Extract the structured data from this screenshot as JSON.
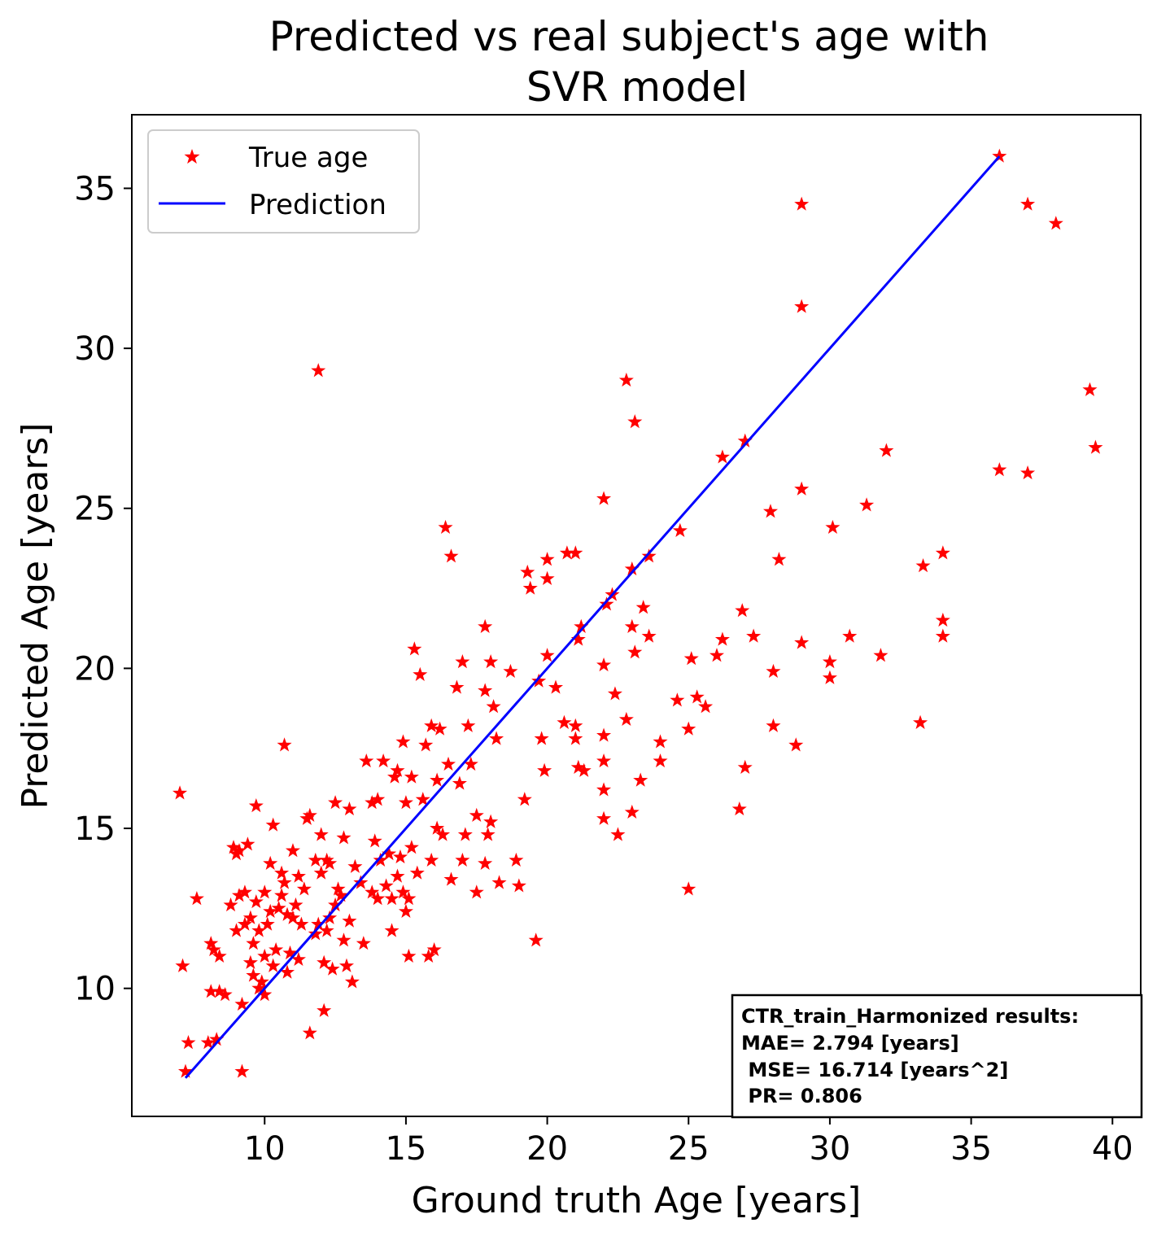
{
  "chart_data": {
    "type": "scatter",
    "title": [
      "Predicted vs real subject's age with",
      "SVR model"
    ],
    "xlabel": "Ground truth Age [years]",
    "ylabel": "Predicted Age [years]",
    "xlim": [
      5.3,
      41.0
    ],
    "ylim": [
      6.0,
      37.3
    ],
    "xticks": [
      10,
      15,
      20,
      25,
      30,
      35,
      40
    ],
    "yticks": [
      10,
      15,
      20,
      25,
      30,
      35
    ],
    "grid": false,
    "legend_position": "top-left",
    "series": [
      {
        "name": "True age",
        "kind": "scatter",
        "marker": "star",
        "color": "#ff0000",
        "points": [
          [
            7.0,
            16.1
          ],
          [
            7.1,
            10.7
          ],
          [
            7.2,
            7.4
          ],
          [
            7.3,
            8.3
          ],
          [
            7.6,
            12.8
          ],
          [
            8.0,
            8.3
          ],
          [
            8.1,
            9.9
          ],
          [
            8.1,
            11.4
          ],
          [
            8.2,
            11.2
          ],
          [
            8.3,
            8.4
          ],
          [
            8.4,
            11.0
          ],
          [
            8.4,
            9.9
          ],
          [
            8.6,
            9.8
          ],
          [
            8.8,
            12.6
          ],
          [
            8.9,
            14.4
          ],
          [
            9.0,
            11.8
          ],
          [
            9.0,
            14.2
          ],
          [
            9.1,
            14.3
          ],
          [
            9.1,
            12.9
          ],
          [
            9.2,
            7.4
          ],
          [
            9.2,
            9.5
          ],
          [
            9.3,
            12.0
          ],
          [
            9.3,
            13.0
          ],
          [
            9.4,
            14.5
          ],
          [
            9.5,
            10.8
          ],
          [
            9.5,
            12.2
          ],
          [
            9.6,
            10.4
          ],
          [
            9.6,
            11.4
          ],
          [
            9.7,
            15.7
          ],
          [
            9.7,
            12.7
          ],
          [
            9.8,
            11.8
          ],
          [
            9.8,
            10.0
          ],
          [
            9.9,
            10.2
          ],
          [
            10.0,
            9.8
          ],
          [
            10.0,
            11.0
          ],
          [
            10.0,
            13.0
          ],
          [
            10.1,
            12.0
          ],
          [
            10.2,
            12.4
          ],
          [
            10.2,
            13.9
          ],
          [
            10.3,
            10.7
          ],
          [
            10.3,
            15.1
          ],
          [
            10.4,
            11.2
          ],
          [
            10.5,
            12.5
          ],
          [
            10.6,
            12.9
          ],
          [
            10.6,
            13.6
          ],
          [
            10.7,
            17.6
          ],
          [
            10.7,
            13.3
          ],
          [
            10.8,
            12.3
          ],
          [
            10.8,
            10.5
          ],
          [
            10.9,
            11.1
          ],
          [
            11.0,
            12.2
          ],
          [
            11.0,
            14.3
          ],
          [
            11.1,
            12.6
          ],
          [
            11.2,
            13.5
          ],
          [
            11.2,
            10.9
          ],
          [
            11.3,
            12.0
          ],
          [
            11.4,
            13.1
          ],
          [
            11.5,
            15.3
          ],
          [
            11.6,
            8.6
          ],
          [
            11.6,
            15.4
          ],
          [
            11.8,
            11.7
          ],
          [
            11.8,
            14.0
          ],
          [
            11.9,
            12.0
          ],
          [
            11.9,
            29.3
          ],
          [
            12.0,
            13.6
          ],
          [
            12.0,
            14.8
          ],
          [
            12.1,
            10.8
          ],
          [
            12.1,
            9.3
          ],
          [
            12.2,
            11.8
          ],
          [
            12.2,
            14.0
          ],
          [
            12.3,
            12.2
          ],
          [
            12.3,
            13.9
          ],
          [
            12.4,
            10.6
          ],
          [
            12.5,
            15.8
          ],
          [
            12.5,
            12.6
          ],
          [
            12.6,
            13.1
          ],
          [
            12.7,
            12.9
          ],
          [
            12.8,
            11.5
          ],
          [
            12.8,
            14.7
          ],
          [
            12.9,
            10.7
          ],
          [
            13.0,
            15.6
          ],
          [
            13.0,
            12.1
          ],
          [
            13.1,
            10.2
          ],
          [
            13.2,
            13.8
          ],
          [
            13.4,
            13.3
          ],
          [
            13.5,
            11.4
          ],
          [
            13.6,
            17.1
          ],
          [
            13.8,
            13.0
          ],
          [
            13.8,
            15.8
          ],
          [
            13.9,
            14.6
          ],
          [
            14.0,
            12.8
          ],
          [
            14.0,
            15.9
          ],
          [
            14.1,
            14.0
          ],
          [
            14.2,
            17.1
          ],
          [
            14.3,
            13.2
          ],
          [
            14.4,
            14.2
          ],
          [
            14.5,
            12.8
          ],
          [
            14.5,
            11.8
          ],
          [
            14.6,
            16.6
          ],
          [
            14.7,
            13.5
          ],
          [
            14.7,
            16.8
          ],
          [
            14.8,
            14.1
          ],
          [
            14.9,
            13.0
          ],
          [
            14.9,
            17.7
          ],
          [
            15.0,
            12.4
          ],
          [
            15.0,
            15.8
          ],
          [
            15.1,
            11.0
          ],
          [
            15.1,
            12.8
          ],
          [
            15.2,
            16.6
          ],
          [
            15.2,
            14.4
          ],
          [
            15.3,
            20.6
          ],
          [
            15.4,
            13.6
          ],
          [
            15.5,
            19.8
          ],
          [
            15.6,
            15.9
          ],
          [
            15.7,
            17.6
          ],
          [
            15.8,
            11.0
          ],
          [
            15.9,
            14.0
          ],
          [
            15.9,
            18.2
          ],
          [
            16.0,
            11.2
          ],
          [
            16.1,
            16.5
          ],
          [
            16.1,
            15.0
          ],
          [
            16.2,
            18.1
          ],
          [
            16.3,
            14.8
          ],
          [
            16.4,
            24.4
          ],
          [
            16.5,
            17.0
          ],
          [
            16.6,
            23.5
          ],
          [
            16.6,
            13.4
          ],
          [
            16.8,
            19.4
          ],
          [
            16.9,
            16.4
          ],
          [
            17.0,
            14.0
          ],
          [
            17.0,
            20.2
          ],
          [
            17.1,
            14.8
          ],
          [
            17.2,
            18.2
          ],
          [
            17.3,
            17.0
          ],
          [
            17.5,
            13.0
          ],
          [
            17.5,
            15.4
          ],
          [
            17.8,
            21.3
          ],
          [
            17.8,
            19.3
          ],
          [
            17.8,
            13.9
          ],
          [
            17.9,
            14.8
          ],
          [
            18.0,
            20.2
          ],
          [
            18.0,
            15.2
          ],
          [
            18.1,
            18.8
          ],
          [
            18.2,
            17.8
          ],
          [
            18.3,
            13.3
          ],
          [
            18.7,
            19.9
          ],
          [
            18.9,
            14.0
          ],
          [
            19.0,
            13.2
          ],
          [
            19.2,
            15.9
          ],
          [
            19.3,
            23.0
          ],
          [
            19.4,
            22.5
          ],
          [
            19.6,
            11.5
          ],
          [
            19.7,
            19.6
          ],
          [
            19.8,
            17.8
          ],
          [
            19.9,
            16.8
          ],
          [
            20.0,
            23.4
          ],
          [
            20.0,
            22.8
          ],
          [
            20.0,
            20.4
          ],
          [
            20.3,
            19.4
          ],
          [
            20.6,
            18.3
          ],
          [
            20.7,
            23.6
          ],
          [
            21.0,
            23.6
          ],
          [
            21.0,
            17.8
          ],
          [
            21.0,
            18.2
          ],
          [
            21.1,
            16.9
          ],
          [
            21.1,
            20.9
          ],
          [
            21.2,
            21.3
          ],
          [
            21.3,
            16.8
          ],
          [
            22.0,
            25.3
          ],
          [
            22.0,
            20.1
          ],
          [
            22.0,
            17.9
          ],
          [
            22.0,
            17.1
          ],
          [
            22.0,
            16.2
          ],
          [
            22.0,
            15.3
          ],
          [
            22.1,
            22.0
          ],
          [
            22.3,
            22.3
          ],
          [
            22.4,
            19.2
          ],
          [
            22.5,
            14.8
          ],
          [
            22.8,
            29.0
          ],
          [
            22.8,
            18.4
          ],
          [
            23.0,
            23.1
          ],
          [
            23.0,
            21.3
          ],
          [
            23.0,
            15.5
          ],
          [
            23.1,
            27.7
          ],
          [
            23.1,
            20.5
          ],
          [
            23.3,
            16.5
          ],
          [
            23.4,
            21.9
          ],
          [
            23.6,
            23.5
          ],
          [
            23.6,
            21.0
          ],
          [
            24.0,
            17.7
          ],
          [
            24.0,
            17.1
          ],
          [
            24.6,
            19.0
          ],
          [
            24.7,
            24.3
          ],
          [
            25.0,
            13.1
          ],
          [
            25.0,
            18.1
          ],
          [
            25.1,
            20.3
          ],
          [
            25.3,
            19.1
          ],
          [
            25.6,
            18.8
          ],
          [
            26.0,
            20.4
          ],
          [
            26.2,
            26.6
          ],
          [
            26.2,
            20.9
          ],
          [
            26.8,
            15.6
          ],
          [
            26.9,
            21.8
          ],
          [
            27.0,
            27.1
          ],
          [
            27.0,
            16.9
          ],
          [
            27.3,
            21.0
          ],
          [
            27.9,
            24.9
          ],
          [
            28.0,
            19.9
          ],
          [
            28.0,
            18.2
          ],
          [
            28.2,
            23.4
          ],
          [
            28.8,
            17.6
          ],
          [
            29.0,
            34.5
          ],
          [
            29.0,
            31.3
          ],
          [
            29.0,
            25.6
          ],
          [
            29.0,
            20.8
          ],
          [
            30.0,
            20.2
          ],
          [
            30.0,
            19.7
          ],
          [
            30.1,
            24.4
          ],
          [
            30.7,
            21.0
          ],
          [
            31.3,
            25.1
          ],
          [
            31.8,
            20.4
          ],
          [
            32.0,
            26.8
          ],
          [
            33.2,
            18.3
          ],
          [
            33.3,
            23.2
          ],
          [
            34.0,
            23.6
          ],
          [
            34.0,
            21.5
          ],
          [
            34.0,
            21.0
          ],
          [
            36.0,
            36.0
          ],
          [
            36.0,
            26.2
          ],
          [
            37.0,
            34.5
          ],
          [
            37.0,
            26.1
          ],
          [
            38.0,
            33.9
          ],
          [
            39.2,
            28.7
          ],
          [
            39.4,
            26.9
          ]
        ]
      },
      {
        "name": "Prediction",
        "kind": "line",
        "color": "#0000ff",
        "points": [
          [
            7.2,
            7.2
          ],
          [
            36.0,
            36.0
          ]
        ]
      }
    ],
    "annotation": {
      "position": "bottom-right",
      "lines": [
        "CTR_train_Harmonized results:",
        "MAE= 2.794 [years]",
        " MSE= 16.714 [years^2]",
        " PR= 0.806"
      ]
    }
  }
}
